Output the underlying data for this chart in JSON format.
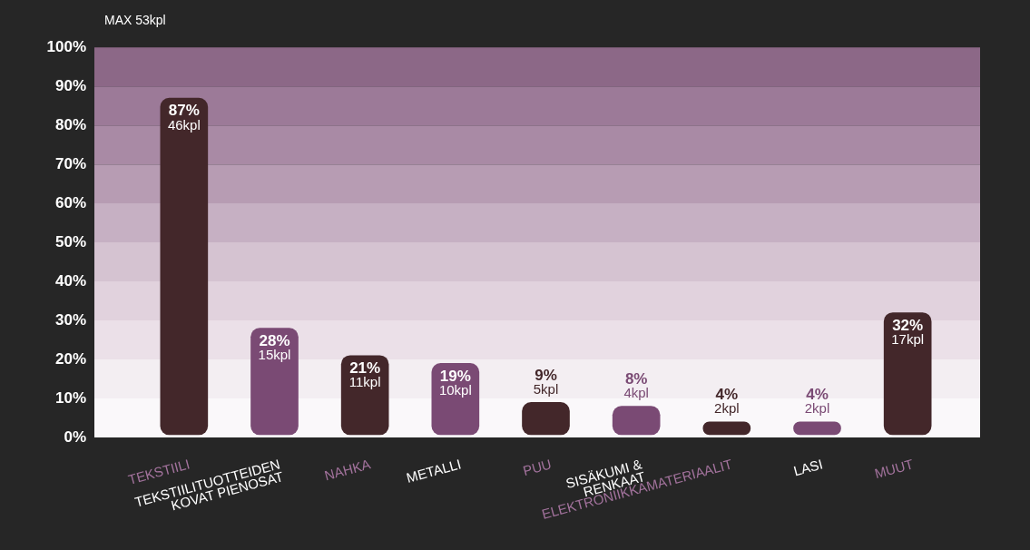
{
  "chart_data": {
    "type": "bar",
    "categories": [
      "TEKSTIILI",
      "TEKSTIILITUOTTEIDEN KOVAT PIENOSAT",
      "NAHKA",
      "METALLI",
      "PUU",
      "SISÄKUMI & RENKAAT",
      "ELEKTRONIIKKAMATERIAALIT",
      "LASI",
      "MUUT"
    ],
    "values": [
      87,
      28,
      21,
      19,
      9,
      8,
      4,
      4,
      32
    ],
    "colors": [
      "#43272a",
      "#7a4a74",
      "#43272a",
      "#7a4a74",
      "#43272a",
      "#7a4a74",
      "#43272a",
      "#7a4a74",
      "#43272a"
    ],
    "value_labels": [
      "87%\n46kpl",
      "28%\n15kpl",
      "21%\n11kpl",
      "19%\n10kpl",
      "9%\n5kpl",
      "8%\n4kpl",
      "4%\n2kpl",
      "4%\n2kpl",
      "32%\n17kpl"
    ],
    "ylim": [
      0,
      100
    ],
    "yticks": [
      {
        "value": 0,
        "label": "0%"
      },
      {
        "value": 10,
        "label": "10%"
      },
      {
        "value": 20,
        "label": "20%"
      },
      {
        "value": 30,
        "label": "30%"
      },
      {
        "value": 40,
        "label": "40%"
      },
      {
        "value": 50,
        "label": "50%"
      },
      {
        "value": 60,
        "label": "60%"
      },
      {
        "value": 70,
        "label": "70%"
      },
      {
        "value": 80,
        "label": "80%"
      },
      {
        "value": 90,
        "label": "90%"
      },
      {
        "value": 100,
        "label": "100%"
      }
    ],
    "bands": [
      {
        "axis": "y",
        "from": 0,
        "to": 10,
        "color": "#faf8fa"
      },
      {
        "axis": "y",
        "from": 10,
        "to": 20,
        "color": "#f3eef2"
      },
      {
        "axis": "y",
        "from": 20,
        "to": 30,
        "color": "#ebe0e8"
      },
      {
        "axis": "y",
        "from": 30,
        "to": 40,
        "color": "#e1d2dd"
      },
      {
        "axis": "y",
        "from": 40,
        "to": 50,
        "color": "#d5c3d1"
      },
      {
        "axis": "y",
        "from": 50,
        "to": 60,
        "color": "#c6b0c3"
      },
      {
        "axis": "y",
        "from": 60,
        "to": 70,
        "color": "#b79cb3"
      },
      {
        "axis": "y",
        "from": 70,
        "to": 80,
        "color": "#a98aa5"
      },
      {
        "axis": "y",
        "from": 80,
        "to": 90,
        "color": "#9c7a98"
      },
      {
        "axis": "y",
        "from": 90,
        "to": 100,
        "color": "#8c6887"
      }
    ],
    "annotations": [
      "MAX 53kpl"
    ],
    "grid": false,
    "legend": false
  }
}
